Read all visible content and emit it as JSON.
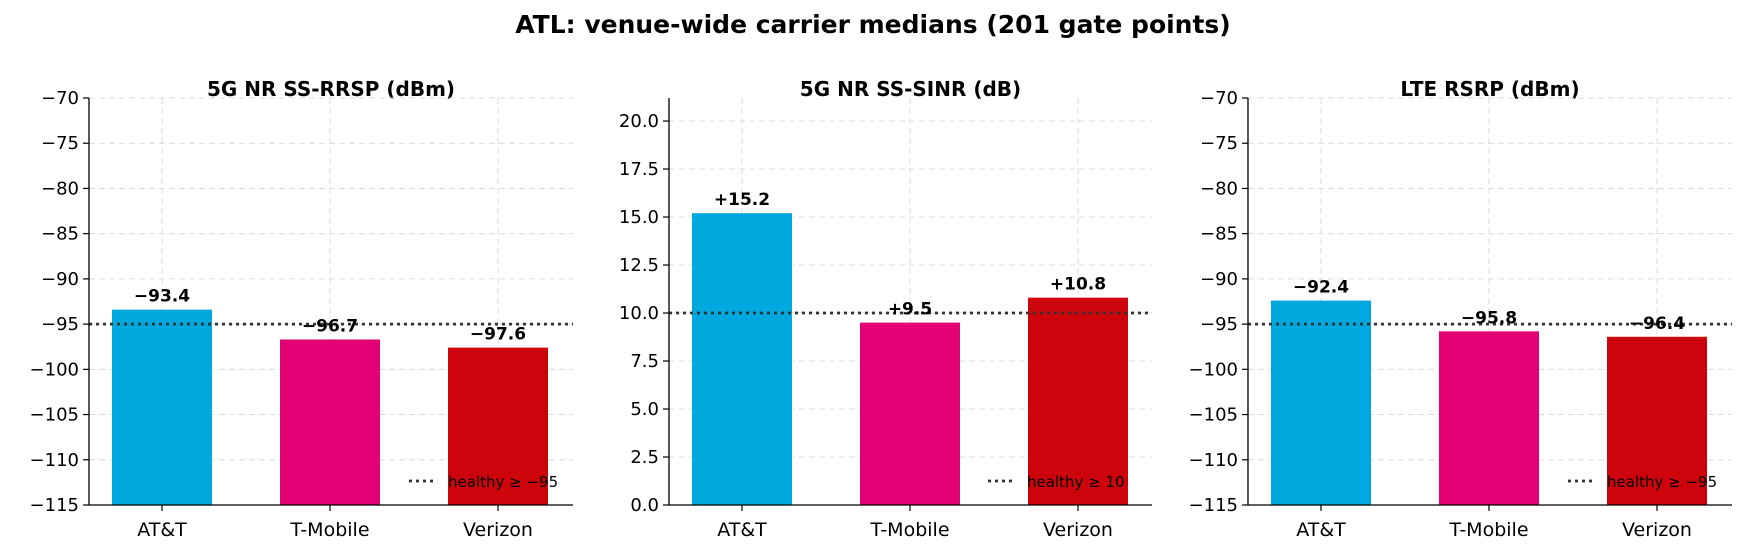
{
  "title": "ATL: venue-wide carrier medians (201 gate points)",
  "chart_data": [
    {
      "type": "bar",
      "title": "5G NR SS-RRSP (dBm)",
      "categories": [
        "AT&T",
        "T-Mobile",
        "Verizon"
      ],
      "values": [
        -93.4,
        -96.7,
        -97.6
      ],
      "value_labels": [
        "−93.4",
        "−96.7",
        "−97.6"
      ],
      "colors": [
        "#00a8e0",
        "#e20074",
        "#cd040b"
      ],
      "ylim": [
        -115,
        -70
      ],
      "ybase": -115,
      "yticks": [
        -70,
        -75,
        -80,
        -85,
        -90,
        -95,
        -100,
        -105,
        -110,
        -115
      ],
      "ytick_labels": [
        "−70",
        "−75",
        "−80",
        "−85",
        "−90",
        "−95",
        "−100",
        "−105",
        "−110",
        "−115"
      ],
      "reference_line": {
        "value": -95,
        "style": "dotted",
        "legend": "healthy ≥ −95"
      },
      "grid": true,
      "legend_position": "lower-right"
    },
    {
      "type": "bar",
      "title": "5G NR SS-SINR (dB)",
      "categories": [
        "AT&T",
        "T-Mobile",
        "Verizon"
      ],
      "values": [
        15.2,
        9.5,
        10.8
      ],
      "value_labels": [
        "+15.2",
        "+9.5",
        "+10.8"
      ],
      "colors": [
        "#00a8e0",
        "#e20074",
        "#cd040b"
      ],
      "ylim": [
        0,
        21.2
      ],
      "ybase": 0,
      "yticks": [
        0,
        2.5,
        5,
        7.5,
        10,
        12.5,
        15,
        17.5,
        20
      ],
      "ytick_labels": [
        "0.0",
        "2.5",
        "5.0",
        "7.5",
        "10.0",
        "12.5",
        "15.0",
        "17.5",
        "20.0"
      ],
      "reference_line": {
        "value": 10,
        "style": "dotted",
        "legend": "healthy ≥ 10"
      },
      "grid": true,
      "legend_position": "lower-right"
    },
    {
      "type": "bar",
      "title": "LTE RSRP (dBm)",
      "categories": [
        "AT&T",
        "T-Mobile",
        "Verizon"
      ],
      "values": [
        -92.4,
        -95.8,
        -96.4
      ],
      "value_labels": [
        "−92.4",
        "−95.8",
        "−96.4"
      ],
      "colors": [
        "#00a8e0",
        "#e20074",
        "#cd040b"
      ],
      "ylim": [
        -115,
        -70
      ],
      "ybase": -115,
      "yticks": [
        -70,
        -75,
        -80,
        -85,
        -90,
        -95,
        -100,
        -105,
        -110,
        -115
      ],
      "ytick_labels": [
        "−70",
        "−75",
        "−80",
        "−85",
        "−90",
        "−95",
        "−100",
        "−105",
        "−110",
        "−115"
      ],
      "reference_line": {
        "value": -95,
        "style": "dotted",
        "legend": "healthy ≥ −95"
      },
      "grid": true,
      "legend_position": "lower-right"
    }
  ]
}
